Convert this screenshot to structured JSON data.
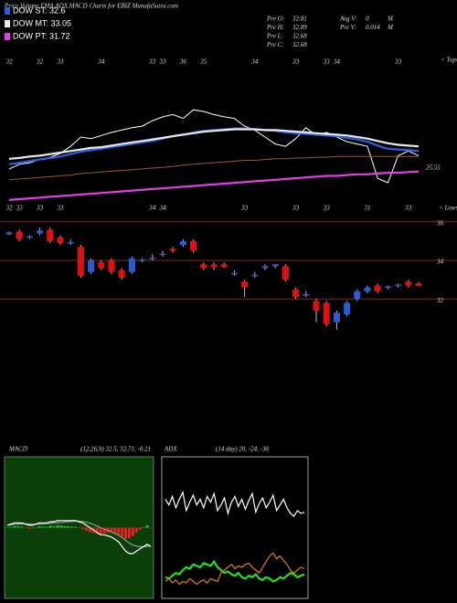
{
  "header": {
    "title": "Price,Volume,EMA,ADX,MACD Charts for EBIZ MunafaSutra.com"
  },
  "stats": [
    {
      "label": "Pre  O:",
      "value": 32.81
    },
    {
      "label": "Pre  H:",
      "value": 32.89
    },
    {
      "label": "Pre  L:",
      "value": 32.68
    },
    {
      "label": "Pre  C:",
      "value": 32.68
    },
    {
      "label": "Avg V:",
      "value": 0,
      "unit": "M"
    },
    {
      "label": "Pre  V:",
      "value": 0.014,
      "unit": "M"
    }
  ],
  "chart_data": [
    {
      "type": "line",
      "ylim": [
        20,
        40
      ],
      "tops_label": "< Tops",
      "lows_label": "< Lows",
      "tops": [
        32,
        null,
        null,
        32,
        null,
        33,
        null,
        null,
        null,
        34,
        null,
        null,
        null,
        null,
        33,
        33,
        null,
        36,
        null,
        35,
        null,
        null,
        null,
        null,
        34,
        null,
        null,
        null,
        33,
        null,
        null,
        33,
        34,
        null,
        null,
        null,
        null,
        null,
        33,
        null,
        null
      ],
      "lows": [
        32,
        33,
        null,
        33,
        null,
        33,
        null,
        null,
        null,
        null,
        null,
        null,
        null,
        null,
        34,
        34,
        null,
        null,
        null,
        null,
        null,
        null,
        null,
        33,
        null,
        null,
        null,
        null,
        33,
        null,
        null,
        33,
        null,
        null,
        null,
        31,
        null,
        null,
        null,
        33,
        null
      ],
      "series": [
        {
          "color": "#ffffff",
          "values": [
            25.9,
            26.5,
            26.7,
            27.1,
            27.4,
            27.9,
            28.8,
            30.0,
            29.8,
            30.2,
            30.6,
            30.9,
            31.2,
            31.4,
            32.1,
            32.6,
            32.9,
            32.4,
            33.5,
            33.3,
            32.9,
            32.6,
            32.4,
            31.4,
            30.9,
            30.0,
            29.1,
            28.8,
            29.8,
            31.2,
            30.2,
            30.6,
            30.0,
            29.4,
            29.1,
            28.8,
            24.7,
            24.1,
            27.6,
            28.2,
            27.6
          ]
        },
        {
          "name": "DOW ST: 32.6",
          "color": "#2a5fe0",
          "values": [
            26.5,
            26.7,
            26.9,
            27.1,
            27.3,
            27.5,
            27.8,
            28.1,
            28.3,
            28.5,
            28.7,
            28.9,
            29.1,
            29.3,
            29.5,
            29.8,
            30.1,
            30.3,
            30.6,
            30.8,
            30.9,
            31.0,
            31.1,
            31.1,
            31.0,
            30.9,
            30.8,
            30.6,
            30.5,
            30.4,
            30.3,
            30.2,
            30.1,
            29.9,
            29.7,
            29.4,
            28.9,
            28.5,
            28.4,
            28.3,
            28.2
          ]
        },
        {
          "name": "DOW MT: 33.05",
          "color": "#e8e8e8",
          "values": [
            27.2,
            27.3,
            27.5,
            27.6,
            27.8,
            28.0,
            28.2,
            28.4,
            28.6,
            28.7,
            28.9,
            29.1,
            29.3,
            29.5,
            29.7,
            29.9,
            30.1,
            30.3,
            30.5,
            30.7,
            30.8,
            30.9,
            31.0,
            31.0,
            31.0,
            30.9,
            30.9,
            30.8,
            30.7,
            30.6,
            30.5,
            30.4,
            30.3,
            30.2,
            30.0,
            29.8,
            29.5,
            29.2,
            29.0,
            28.9,
            28.8
          ]
        },
        {
          "color": "#9a5a2a",
          "values": [
            24.5,
            24.6,
            24.7,
            24.8,
            24.9,
            25.0,
            25.1,
            25.3,
            25.4,
            25.5,
            25.6,
            25.7,
            25.8,
            25.9,
            26.0,
            26.1,
            26.2,
            26.4,
            26.5,
            26.6,
            26.7,
            26.8,
            26.9,
            27.0,
            27.0,
            27.1,
            27.2,
            27.2,
            27.3,
            27.3,
            27.4,
            27.4,
            27.5,
            27.5,
            27.5,
            27.5,
            27.5,
            27.5,
            27.5,
            27.5,
            27.5
          ]
        },
        {
          "name": "DOW PT: 31.72",
          "color": "#e040e0",
          "values": [
            21.9,
            22.0,
            22.1,
            22.2,
            22.3,
            22.4,
            22.5,
            22.6,
            22.7,
            22.8,
            22.9,
            23.0,
            23.1,
            23.2,
            23.3,
            23.4,
            23.5,
            23.6,
            23.7,
            23.8,
            23.9,
            24.0,
            24.1,
            24.2,
            24.3,
            24.4,
            24.5,
            24.6,
            24.7,
            24.8,
            24.9,
            25.0,
            25.0,
            25.1,
            25.2,
            25.2,
            25.3,
            25.4,
            25.4,
            25.5,
            25.55
          ]
        }
      ]
    },
    {
      "type": "candlestick",
      "ylim": [
        24.3,
        36.7
      ],
      "yticks": [
        32,
        34,
        36
      ],
      "grid": true,
      "grid_color": "#8a2424",
      "up_color": "#2a5cd6",
      "down_color": "#e01010",
      "open": [
        35.35,
        35.5,
        35.2,
        35.4,
        35.6,
        35.2,
        34.9,
        34.7,
        33.4,
        33.9,
        34.0,
        33.5,
        33.4,
        34.0,
        34.1,
        34.3,
        34.6,
        34.8,
        35.0,
        33.8,
        33.8,
        33.8,
        33.3,
        32.9,
        33.2,
        33.6,
        33.7,
        33.7,
        32.5,
        32.2,
        31.9,
        31.8,
        30.8,
        31.2,
        32.0,
        32.4,
        32.7,
        32.6,
        32.7,
        32.9,
        32.81
      ],
      "high": [
        35.5,
        35.6,
        35.3,
        35.7,
        35.7,
        35.3,
        35.1,
        34.8,
        34.1,
        34.0,
        34.1,
        33.6,
        34.2,
        34.1,
        34.3,
        34.5,
        34.7,
        35.1,
        35.1,
        33.9,
        33.9,
        33.9,
        33.5,
        33.0,
        33.4,
        33.8,
        33.8,
        33.8,
        32.6,
        32.4,
        32.0,
        31.9,
        31.4,
        31.9,
        32.5,
        32.7,
        32.8,
        32.7,
        32.8,
        33.0,
        32.89
      ],
      "low": [
        35.3,
        35.0,
        35.1,
        35.3,
        34.9,
        34.8,
        34.8,
        33.1,
        33.3,
        33.5,
        33.3,
        33.0,
        33.3,
        33.9,
        34.0,
        34.2,
        34.4,
        34.7,
        34.4,
        33.5,
        33.5,
        33.6,
        33.2,
        32.1,
        33.1,
        33.5,
        33.6,
        32.9,
        32.0,
        32.1,
        30.8,
        30.6,
        30.4,
        31.1,
        31.9,
        32.3,
        32.3,
        32.5,
        32.6,
        32.6,
        32.68
      ],
      "close": [
        35.45,
        35.1,
        35.25,
        35.55,
        35.0,
        34.9,
        34.95,
        33.2,
        34.0,
        33.6,
        33.4,
        33.1,
        34.1,
        34.05,
        34.15,
        34.35,
        34.5,
        35.0,
        34.5,
        33.6,
        33.65,
        33.65,
        33.35,
        32.6,
        33.25,
        33.7,
        33.8,
        33.0,
        32.1,
        32.25,
        31.4,
        30.7,
        31.3,
        31.8,
        32.4,
        32.6,
        32.4,
        32.65,
        32.75,
        32.7,
        32.68
      ]
    },
    {
      "type": "macd",
      "title": "MACD",
      "subtitle": "(12,26,9) 32.5, 32.71, -0.21",
      "ylim": [
        -3,
        3
      ],
      "background": "#0a3f0a",
      "pos_color": "#2fd02f",
      "neg_color": "#e82020",
      "macd": {
        "color": "#ffffff",
        "values": [
          0.1,
          0.15,
          0.2,
          0.2,
          0.2,
          0.15,
          0.1,
          0.1,
          0.15,
          0.2,
          0.2,
          0.2,
          0.25,
          0.25,
          0.3,
          0.3,
          0.3,
          0.3,
          0.3,
          0.3,
          0.25,
          0.2,
          0.1,
          0.0,
          -0.1,
          -0.2,
          -0.3,
          -0.3,
          -0.35,
          -0.4,
          -0.5,
          -0.6,
          -0.8,
          -1.0,
          -1.1,
          -1.1,
          -1.0,
          -0.9,
          -0.8,
          -0.7,
          -0.8
        ]
      },
      "signal": {
        "color": "#999999",
        "values": [
          0.1,
          0.12,
          0.14,
          0.15,
          0.16,
          0.16,
          0.15,
          0.14,
          0.14,
          0.15,
          0.16,
          0.17,
          0.18,
          0.2,
          0.21,
          0.22,
          0.24,
          0.25,
          0.26,
          0.27,
          0.27,
          0.26,
          0.23,
          0.19,
          0.13,
          0.07,
          0.0,
          -0.06,
          -0.12,
          -0.18,
          -0.25,
          -0.32,
          -0.42,
          -0.54,
          -0.65,
          -0.74,
          -0.79,
          -0.81,
          -0.81,
          -0.79,
          -0.79
        ]
      },
      "histogram": [
        0,
        0.03,
        0.06,
        0.05,
        0.04,
        -0.01,
        -0.05,
        -0.04,
        0.01,
        0.05,
        0.04,
        0.03,
        0.07,
        0.05,
        0.09,
        0.08,
        0.06,
        0.05,
        0.04,
        0.03,
        -0.02,
        -0.06,
        -0.13,
        -0.19,
        -0.23,
        -0.27,
        -0.3,
        -0.24,
        -0.23,
        -0.22,
        -0.25,
        -0.28,
        -0.38,
        -0.46,
        -0.45,
        -0.36,
        -0.21,
        -0.09,
        0.01,
        0.09,
        -0.01
      ]
    },
    {
      "type": "adx",
      "title": "ADX",
      "subtitle": "(14 day) 20, -24, -36",
      "ylim": [
        0,
        100
      ],
      "series": [
        {
          "color": "#ffffff",
          "values": [
            70,
            66,
            72,
            64,
            70,
            75,
            62,
            68,
            73,
            66,
            70,
            64,
            72,
            68,
            74,
            62,
            66,
            71,
            60,
            68,
            72,
            65,
            70,
            63,
            69,
            74,
            61,
            67,
            71,
            64,
            68,
            73,
            62,
            66,
            70,
            64,
            60,
            58,
            62,
            60,
            61
          ]
        },
        {
          "color": "#22e022",
          "values": [
            15,
            14,
            16,
            18,
            17,
            20,
            22,
            21,
            24,
            23,
            22,
            25,
            24,
            23,
            26,
            22,
            20,
            18,
            19,
            17,
            16,
            18,
            15,
            14,
            16,
            15,
            17,
            14,
            13,
            15,
            14,
            12,
            13,
            15,
            14,
            16,
            18,
            17,
            15,
            16,
            17
          ]
        },
        {
          "color": "#d9801a",
          "values": [
            12,
            14,
            11,
            13,
            10,
            12,
            11,
            14,
            12,
            10,
            12,
            13,
            11,
            14,
            13,
            12,
            18,
            20,
            22,
            24,
            21,
            23,
            22,
            24,
            25,
            22,
            20,
            18,
            22,
            26,
            30,
            32,
            28,
            30,
            27,
            24,
            20,
            18,
            20,
            22,
            21
          ]
        }
      ]
    }
  ]
}
